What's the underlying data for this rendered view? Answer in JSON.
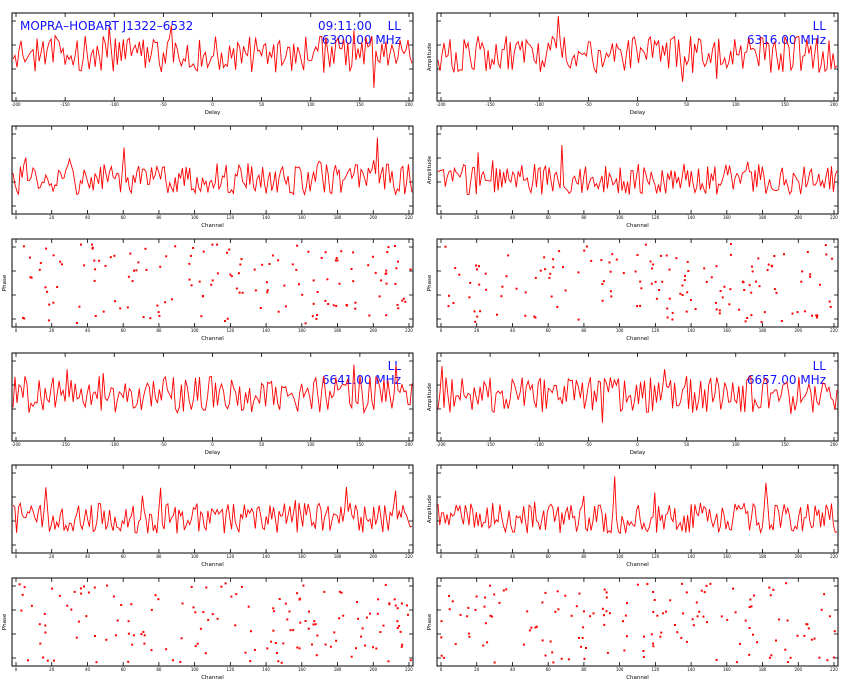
{
  "colors": {
    "trace": "#ff0000",
    "annotation": "#1010ff",
    "frame": "#000000",
    "background": "#ffffff"
  },
  "header": {
    "baseline_source": "MOPRA–HOBART J1322–6532",
    "time": "09:11:00"
  },
  "chart_data": [
    {
      "id": "p1",
      "type": "line",
      "role": "delay",
      "ylabel": "",
      "xlabel": "Delay",
      "annotations": [
        "LL",
        "6300.00 MHz"
      ],
      "xticks": [
        "-200",
        "-150",
        "-100",
        "-50",
        "0",
        "50",
        "100",
        "150",
        "200"
      ]
    },
    {
      "id": "p2",
      "type": "line",
      "role": "delay",
      "ylabel": "Amplitude",
      "xlabel": "Delay",
      "annotations": [
        "LL",
        "6316.00 MHz"
      ],
      "xticks": [
        "-200",
        "-150",
        "-100",
        "-50",
        "0",
        "50",
        "100",
        "150",
        "200"
      ]
    },
    {
      "id": "p3",
      "type": "line",
      "role": "channel",
      "ylabel": "",
      "xlabel": "Channel",
      "annotations": [],
      "xticks": [
        "0",
        "20",
        "40",
        "60",
        "80",
        "100",
        "120",
        "140",
        "160",
        "180",
        "200",
        "220"
      ]
    },
    {
      "id": "p4",
      "type": "line",
      "role": "channel",
      "ylabel": "Amplitude",
      "xlabel": "Channel",
      "annotations": [],
      "xticks": [
        "0",
        "20",
        "40",
        "60",
        "80",
        "100",
        "120",
        "140",
        "160",
        "180",
        "200",
        "220"
      ]
    },
    {
      "id": "p5",
      "type": "scatter",
      "role": "phase",
      "ylabel": "Phase",
      "xlabel": "Channel",
      "annotations": [],
      "xticks": [
        "0",
        "20",
        "40",
        "60",
        "80",
        "100",
        "120",
        "140",
        "160",
        "180",
        "200",
        "220"
      ]
    },
    {
      "id": "p6",
      "type": "scatter",
      "role": "phase",
      "ylabel": "Phase",
      "xlabel": "Channel",
      "annotations": [],
      "xticks": [
        "0",
        "20",
        "40",
        "60",
        "80",
        "100",
        "120",
        "140",
        "160",
        "180",
        "200",
        "220"
      ]
    },
    {
      "id": "p7",
      "type": "line",
      "role": "delay",
      "ylabel": "",
      "xlabel": "Delay",
      "annotations": [
        "LL",
        "6641.00 MHz"
      ],
      "xticks": [
        "-200",
        "-150",
        "-100",
        "-50",
        "0",
        "50",
        "100",
        "150",
        "200"
      ]
    },
    {
      "id": "p8",
      "type": "line",
      "role": "delay",
      "ylabel": "Amplitude",
      "xlabel": "Delay",
      "annotations": [
        "LL",
        "6657.00 MHz"
      ],
      "xticks": [
        "-200",
        "-150",
        "-100",
        "-50",
        "0",
        "50",
        "100",
        "150",
        "200"
      ]
    },
    {
      "id": "p9",
      "type": "line",
      "role": "channel",
      "ylabel": "",
      "xlabel": "Channel",
      "annotations": [],
      "xticks": [
        "0",
        "20",
        "40",
        "60",
        "80",
        "100",
        "120",
        "140",
        "160",
        "180",
        "200",
        "220"
      ]
    },
    {
      "id": "p10",
      "type": "line",
      "role": "channel",
      "ylabel": "Amplitude",
      "xlabel": "Channel",
      "annotations": [],
      "xticks": [
        "0",
        "20",
        "40",
        "60",
        "80",
        "100",
        "120",
        "140",
        "160",
        "180",
        "200",
        "220"
      ]
    },
    {
      "id": "p11",
      "type": "scatter",
      "role": "phase",
      "ylabel": "Phase",
      "xlabel": "Channel",
      "annotations": [],
      "xticks": [
        "0",
        "20",
        "40",
        "60",
        "80",
        "100",
        "120",
        "140",
        "160",
        "180",
        "200",
        "220"
      ]
    },
    {
      "id": "p12",
      "type": "scatter",
      "role": "phase",
      "ylabel": "Phase",
      "xlabel": "Channel",
      "annotations": [],
      "xticks": [
        "0",
        "20",
        "40",
        "60",
        "80",
        "100",
        "120",
        "140",
        "160",
        "180",
        "200",
        "220"
      ]
    }
  ]
}
